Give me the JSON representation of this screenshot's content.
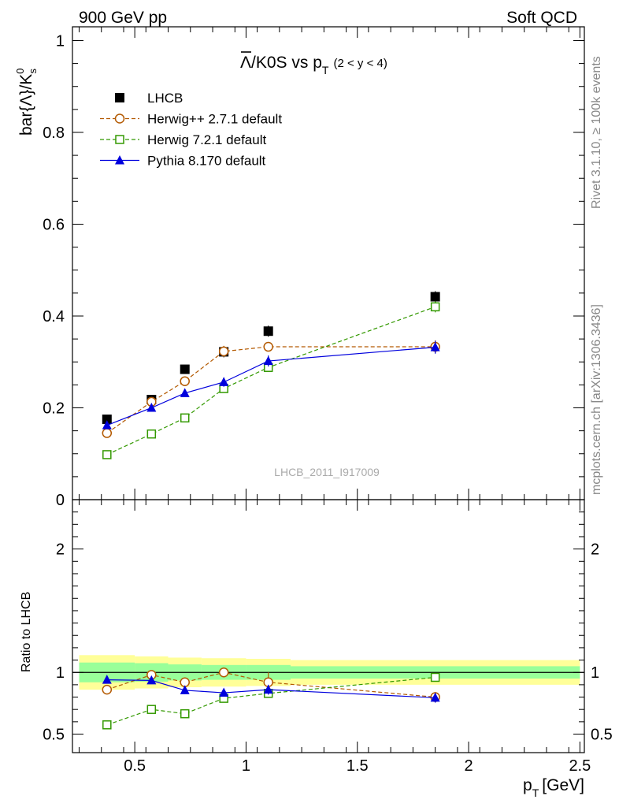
{
  "header": {
    "left": "900 GeV pp",
    "right": "Soft QCD"
  },
  "side_labels": {
    "rivet": "Rivet 3.1.10, ≥ 100k events",
    "mcplots": "mcplots.cern.ch [arXiv:1306.3436]"
  },
  "watermark": "LHCB_2011_I917009",
  "chart_data": [
    {
      "type": "line",
      "title": {
        "main": "Λ/K0S vs p",
        "sub": "T",
        "range": "(2 < y < 4)"
      },
      "ylabel": "bar{Λ}/K",
      "ylabel_sup": "0",
      "ylabel_sub": "s",
      "xlim": [
        0.22,
        2.52
      ],
      "ylim": [
        0,
        1.03
      ],
      "y_ticks": [
        {
          "value": 0,
          "label": "0"
        },
        {
          "value": 0.2,
          "label": "0.2"
        },
        {
          "value": 0.4,
          "label": "0.4"
        },
        {
          "value": 0.6,
          "label": "0.6"
        },
        {
          "value": 0.8,
          "label": "0.8"
        },
        {
          "value": 1,
          "label": "1"
        }
      ],
      "legend_position": "top-left",
      "series": [
        {
          "name": "LHCB",
          "marker": "filled-square",
          "color": "#000000",
          "line": "none",
          "x": [
            0.375,
            0.575,
            0.725,
            0.9,
            1.1,
            1.85
          ],
          "y": [
            0.175,
            0.218,
            0.284,
            0.322,
            0.367,
            0.442
          ],
          "err": [
            0.006,
            0.006,
            0.008,
            0.012,
            0.012,
            0.012
          ]
        },
        {
          "name": "Herwig++ 2.7.1 default",
          "marker": "open-circle",
          "color": "#b35900",
          "line": "dashed",
          "x": [
            0.375,
            0.575,
            0.725,
            0.9,
            1.1,
            1.85
          ],
          "y": [
            0.145,
            0.213,
            0.258,
            0.323,
            0.333,
            0.333
          ],
          "err": [
            0.005,
            0.006,
            0.007,
            0.012,
            0.008,
            0.014
          ]
        },
        {
          "name": "Herwig 7.2.1 default",
          "marker": "open-square",
          "color": "#339900",
          "line": "dashed",
          "x": [
            0.375,
            0.575,
            0.725,
            0.9,
            1.1,
            1.85
          ],
          "y": [
            0.098,
            0.143,
            0.178,
            0.242,
            0.288,
            0.42
          ],
          "err": [
            0.003,
            0.004,
            0.005,
            0.007,
            0.009,
            0.012
          ]
        },
        {
          "name": "Pythia 8.170 default",
          "marker": "filled-triangle",
          "color": "#0000dd",
          "line": "solid",
          "x": [
            0.375,
            0.575,
            0.725,
            0.9,
            1.1,
            1.85
          ],
          "y": [
            0.162,
            0.2,
            0.232,
            0.256,
            0.302,
            0.332
          ],
          "err": [
            0.004,
            0.005,
            0.008,
            0.01,
            0.012,
            0.014
          ]
        }
      ]
    },
    {
      "type": "line",
      "ylabel": "Ratio to LHCB",
      "xlabel": "p",
      "xlabel_sub": "T",
      "xlabel_unit": "[GeV]",
      "xlim": [
        0.22,
        2.52
      ],
      "ylim": [
        0.35,
        2.4
      ],
      "x_ticks": [
        {
          "value": 0.5,
          "label": "0.5"
        },
        {
          "value": 1,
          "label": "1"
        },
        {
          "value": 1.5,
          "label": "1.5"
        },
        {
          "value": 2,
          "label": "2"
        },
        {
          "value": 2.5,
          "label": "2.5"
        }
      ],
      "y_ticks": [
        {
          "value": 0.5,
          "label": "0.5"
        },
        {
          "value": 1,
          "label": "1"
        },
        {
          "value": 2,
          "label": "2"
        }
      ],
      "reference_line": 1,
      "bands": {
        "bins": [
          [
            0.25,
            0.5
          ],
          [
            0.5,
            0.65
          ],
          [
            0.65,
            0.8
          ],
          [
            0.8,
            1.0
          ],
          [
            1.0,
            1.2
          ],
          [
            1.2,
            2.5
          ]
        ],
        "green_halfwidth": [
          0.08,
          0.075,
          0.065,
          0.06,
          0.06,
          0.05
        ],
        "yellow_halfwidth": [
          0.14,
          0.13,
          0.12,
          0.115,
          0.11,
          0.1
        ],
        "green_color": "#99ff99",
        "yellow_color": "#ffff99"
      },
      "series": [
        {
          "name": "Herwig++ 2.7.1 default",
          "marker": "open-circle",
          "color": "#b35900",
          "line": "dashed",
          "x": [
            0.375,
            0.575,
            0.725,
            0.9,
            1.1,
            1.85
          ],
          "y": [
            0.86,
            0.98,
            0.92,
            1.0,
            0.92,
            0.8
          ],
          "err": [
            0.02,
            0.03,
            0.04,
            0.04,
            0.08,
            0.04
          ]
        },
        {
          "name": "Herwig 7.2.1 default",
          "marker": "open-square",
          "color": "#339900",
          "line": "dashed",
          "x": [
            0.375,
            0.575,
            0.725,
            0.9,
            1.1,
            1.85
          ],
          "y": [
            0.575,
            0.7,
            0.665,
            0.79,
            0.83,
            0.96
          ],
          "err": [
            0.015,
            0.02,
            0.03,
            0.03,
            0.03,
            0.03
          ]
        },
        {
          "name": "Pythia 8.170 default",
          "marker": "filled-triangle",
          "color": "#0000dd",
          "line": "solid",
          "x": [
            0.375,
            0.575,
            0.725,
            0.9,
            1.1,
            1.85
          ],
          "y": [
            0.94,
            0.935,
            0.855,
            0.835,
            0.86,
            0.795
          ],
          "err": [
            0.02,
            0.025,
            0.03,
            0.03,
            0.04,
            0.04
          ]
        }
      ]
    }
  ]
}
